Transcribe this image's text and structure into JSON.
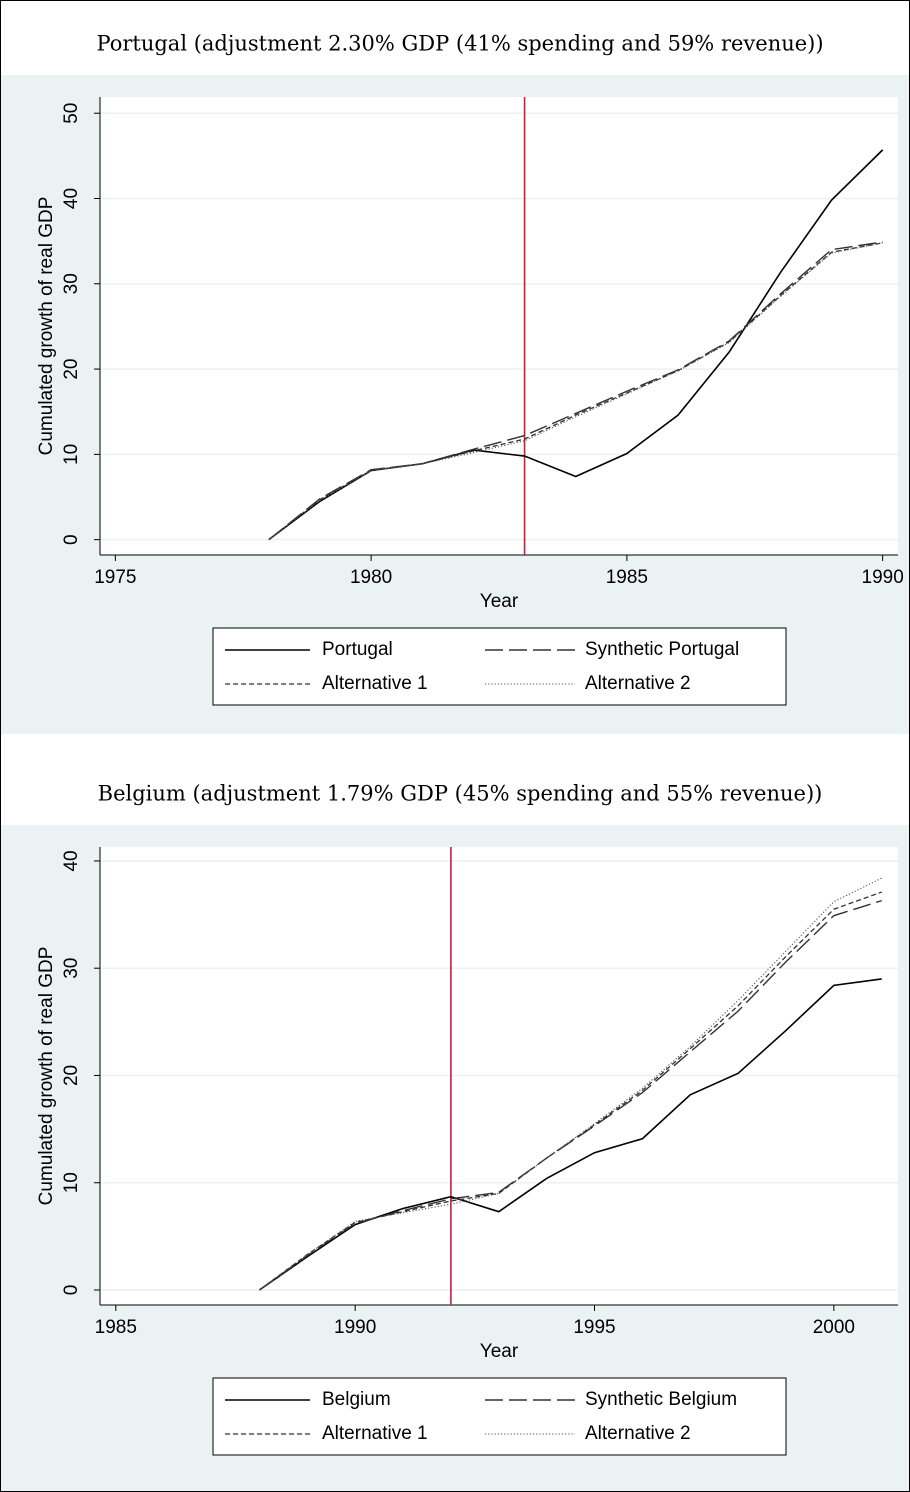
{
  "chart_data": [
    {
      "type": "line",
      "title": "Portugal (adjustment 2.30% GDP (41% spending and 59% revenue))",
      "x_label": "Year",
      "y_label": "Cumulated growth of real GDP",
      "x": [
        1978,
        1979,
        1980,
        1981,
        1982,
        1983,
        1984,
        1985,
        1986,
        1987,
        1988,
        1989,
        1990
      ],
      "series": [
        {
          "name": "Portugal",
          "color": "#000000",
          "style": "solid",
          "values": [
            0,
            4.5,
            8.1,
            8.9,
            10.5,
            9.8,
            7.4,
            10.1,
            14.6,
            22,
            31.3,
            39.8,
            45.7
          ]
        },
        {
          "name": "Synthetic Portugal",
          "color": "#333333",
          "style": "longdash",
          "values": [
            0,
            4.8,
            8.2,
            8.9,
            10.6,
            12.2,
            14.8,
            17.4,
            19.9,
            23.3,
            28.8,
            34,
            34.9
          ]
        },
        {
          "name": "Alternative 1",
          "color": "#333333",
          "style": "dash",
          "values": [
            0,
            4.7,
            8.1,
            8.9,
            10.4,
            11.8,
            14.6,
            17.2,
            19.8,
            23.2,
            28.6,
            33.7,
            34.8
          ]
        },
        {
          "name": "Alternative 2",
          "color": "#555555",
          "style": "dot",
          "values": [
            0,
            4.6,
            8.1,
            8.9,
            10.2,
            11.6,
            14.4,
            17.1,
            19.8,
            23.1,
            28.5,
            33.6,
            34.8
          ]
        }
      ],
      "vline": {
        "x": 1983,
        "color": "#c41e3a"
      },
      "xlim": [
        1974.7,
        1990.3
      ],
      "xticks": [
        1975,
        1980,
        1985,
        1990
      ],
      "ylim": [
        -1.8,
        51.9
      ],
      "yticks": [
        0,
        10,
        20,
        30,
        40,
        50
      ],
      "grid": true
    },
    {
      "type": "line",
      "title": "Belgium (adjustment 1.79% GDP (45% spending and 55% revenue))",
      "x_label": "Year",
      "y_label": "Cumulated growth of real GDP",
      "x": [
        1988,
        1989,
        1990,
        1991,
        1992,
        1993,
        1994,
        1995,
        1996,
        1997,
        1998,
        1999,
        2000,
        2001
      ],
      "series": [
        {
          "name": "Belgium",
          "color": "#000000",
          "style": "solid",
          "values": [
            0,
            3.1,
            6.1,
            7.6,
            8.7,
            7.3,
            10.4,
            12.8,
            14.1,
            18.2,
            20.2,
            24.2,
            28.4,
            29
          ]
        },
        {
          "name": "Synthetic Belgium",
          "color": "#333333",
          "style": "longdash",
          "values": [
            0,
            3.2,
            6.2,
            7.4,
            8.5,
            9.1,
            12.3,
            15.3,
            18.4,
            22.2,
            26,
            30.6,
            34.9,
            36.3
          ]
        },
        {
          "name": "Alternative 1",
          "color": "#333333",
          "style": "dash",
          "values": [
            0,
            3.3,
            6.3,
            7.3,
            8.3,
            9,
            12.3,
            15.4,
            18.6,
            22.5,
            26.5,
            31.1,
            35.5,
            37.1
          ]
        },
        {
          "name": "Alternative 2",
          "color": "#555555",
          "style": "dot",
          "values": [
            0,
            3.3,
            6.4,
            7.2,
            8.0,
            9.0,
            12.3,
            15.5,
            18.8,
            22.7,
            27,
            31.6,
            36.2,
            38.4
          ]
        }
      ],
      "vline": {
        "x": 1992,
        "color": "#c41e3a"
      },
      "xlim": [
        1984.67,
        2001.34
      ],
      "xticks": [
        1985,
        1990,
        1995,
        2000
      ],
      "ylim": [
        -1.4,
        41.3
      ],
      "yticks": [
        0,
        10,
        20,
        30,
        40
      ],
      "grid": true
    }
  ]
}
